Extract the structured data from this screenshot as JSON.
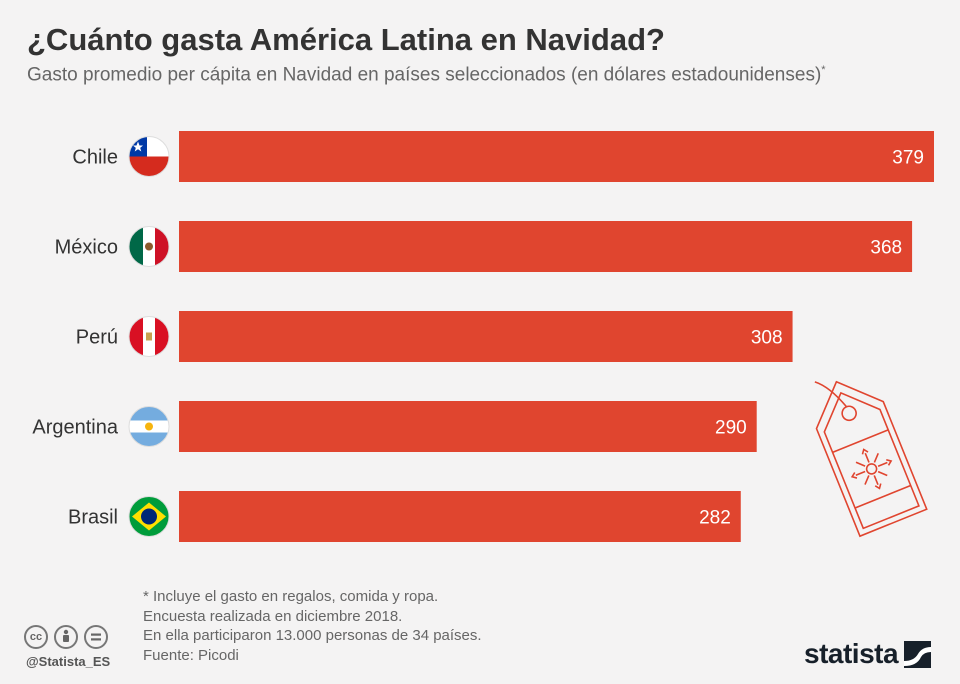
{
  "header": {
    "title": "¿Cuánto gasta América Latina en Navidad?",
    "subtitle": "Gasto promedio per cápita en Navidad en países seleccionados (en dólares estadounidenses)",
    "subtitle_mark": "*"
  },
  "chart_data": {
    "type": "bar",
    "orientation": "horizontal",
    "categories": [
      "Chile",
      "México",
      "Perú",
      "Argentina",
      "Brasil"
    ],
    "values": [
      379,
      368,
      308,
      290,
      282
    ],
    "value_labels": [
      "379",
      "368",
      "308",
      "290",
      "282"
    ],
    "xlim": [
      0,
      379
    ],
    "grid": false,
    "bar_color": "#e0452f"
  },
  "flag_icons": [
    "chile-flag-icon",
    "mexico-flag-icon",
    "peru-flag-icon",
    "argentina-flag-icon",
    "brazil-flag-icon"
  ],
  "notes": [
    "* Incluye el gasto en regalos, comida y ropa.",
    "Encuesta realizada en diciembre 2018.",
    "En ella participaron 13.000 personas de 34 países.",
    "Fuente: Picodi"
  ],
  "footer": {
    "license_icons": [
      "cc",
      "by",
      "nd"
    ],
    "license_icon_names": [
      "cc-icon",
      "attribution-icon",
      "no-derivatives-icon"
    ],
    "handle": "@Statista_ES",
    "brand": "statista"
  },
  "colors": {
    "bar": "#e0452f",
    "background": "#f4f3f3",
    "text": "#333333",
    "decoration": "#e0452f"
  }
}
